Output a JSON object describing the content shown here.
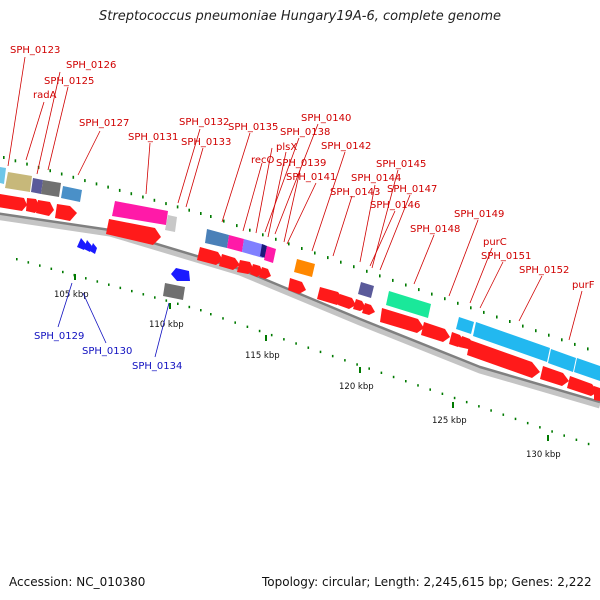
{
  "title": "Streptococcus pneumoniae Hungary19A-6, complete genome",
  "footer": {
    "accession": "Accession: NC_010380",
    "summary": "Topology: circular; Length: 2,245,615 bp; Genes: 2,222"
  },
  "colors": {
    "backbone": "#808080",
    "cds_forward": "#ff0000",
    "label_forward": "#d00000",
    "label_reverse": "#1010c0",
    "tick": "#007a00"
  },
  "scale_labels": [
    "105 kbp",
    "110 kbp",
    "115 kbp",
    "120 kbp",
    "125 kbp",
    "130 kbp"
  ],
  "forward_labels": [
    "SPH_0123",
    "SPH_0126",
    "radA",
    "SPH_0125",
    "SPH_0127",
    "SPH_0131",
    "SPH_0132",
    "SPH_0133",
    "SPH_0135",
    "SPH_0140",
    "SPH_0138",
    "plsX",
    "recO",
    "SPH_0139",
    "SPH_0142",
    "SPH_0141",
    "SPH_0145",
    "SPH_0144",
    "SPH_0143",
    "SPH_0147",
    "SPH_0146",
    "SPH_0148",
    "SPH_0149",
    "purC",
    "SPH_0151",
    "SPH_0152",
    "purF"
  ],
  "reverse_labels": [
    "SPH_0129",
    "SPH_0130",
    "SPH_0134"
  ]
}
